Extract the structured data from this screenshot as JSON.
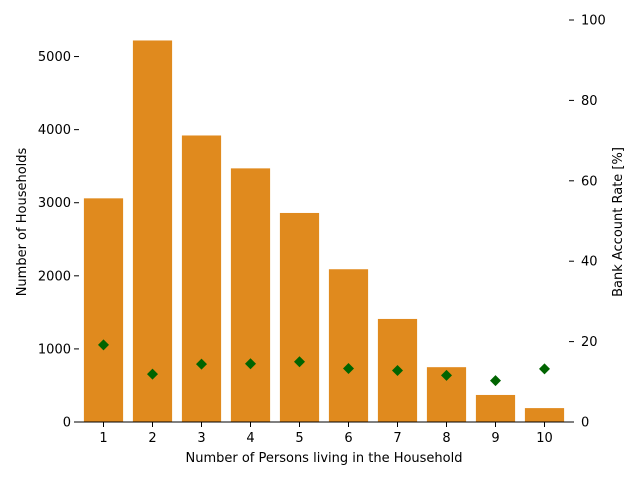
{
  "chart_data": {
    "type": "bar",
    "categories": [
      "1",
      "2",
      "3",
      "4",
      "5",
      "6",
      "7",
      "8",
      "9",
      "10"
    ],
    "series": [
      {
        "values": [
          3060,
          5220,
          3920,
          3470,
          2860,
          2090,
          1410,
          750,
          370,
          190
        ],
        "axis": "left",
        "mark": "bar",
        "color": "#e08a1e"
      },
      {
        "values": [
          19.2,
          11.9,
          14.4,
          14.5,
          15.0,
          13.3,
          12.8,
          11.6,
          10.3,
          13.2
        ],
        "axis": "right",
        "mark": "diamond",
        "color": "#006400"
      }
    ],
    "xlabel": "Number of Persons living in the Household",
    "ylabel": "Number of Households",
    "y2label": "Bank Account Rate [%]",
    "ylim": [
      0,
      5500
    ],
    "y2lim": [
      0,
      100
    ],
    "yticks": [
      0,
      1000,
      2000,
      3000,
      4000,
      5000
    ],
    "y2ticks": [
      0,
      20,
      40,
      60,
      80,
      100
    ],
    "grid": false
  }
}
